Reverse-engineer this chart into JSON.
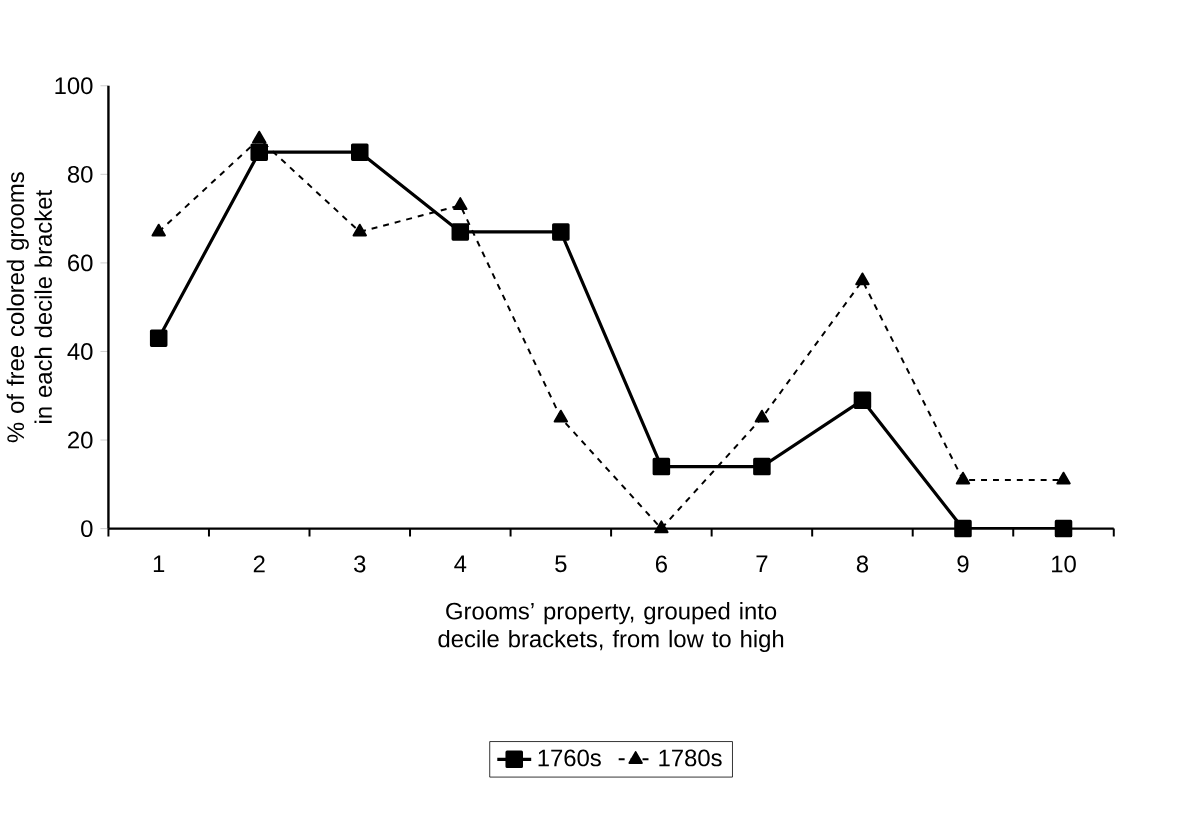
{
  "chart_data": {
    "type": "line",
    "xlabel": "Grooms’ property, grouped into decile brackets, from low to high",
    "ylabel": "% of free colored grooms in each decile bracket",
    "categories": [
      "1",
      "2",
      "3",
      "4",
      "5",
      "6",
      "7",
      "8",
      "9",
      "10"
    ],
    "series": [
      {
        "name": "1760s",
        "color": "#000000",
        "marker": "square",
        "line_style": "solid",
        "values": [
          43,
          85,
          85,
          67,
          67,
          14,
          14,
          29,
          0,
          0
        ]
      },
      {
        "name": "1780s",
        "color": "#000000",
        "marker": "triangle",
        "line_style": "dashed",
        "values": [
          67,
          88,
          67,
          73,
          25,
          0,
          25,
          56,
          11,
          11
        ]
      }
    ],
    "ylim": [
      0,
      100
    ],
    "yticks": [
      0,
      20,
      40,
      60,
      80,
      100
    ],
    "grid": false,
    "legend": "bottom"
  }
}
